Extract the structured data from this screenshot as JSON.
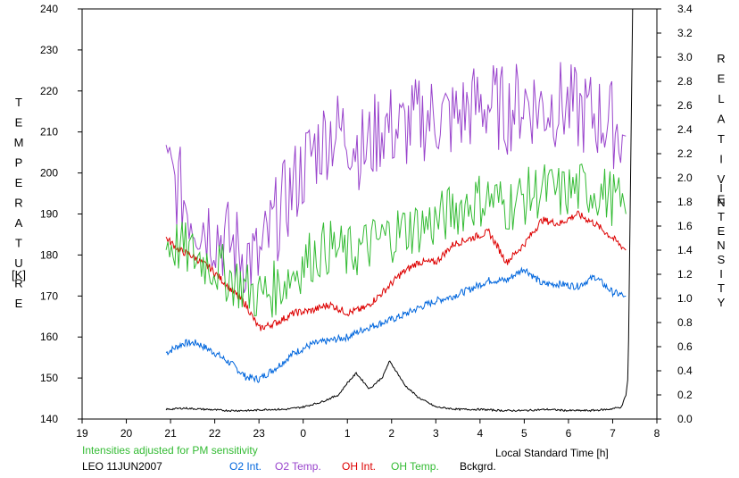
{
  "chart_data": {
    "type": "line",
    "xlabel": "Local Standard Time [h]",
    "ylabel_left": [
      "T",
      "E",
      "M",
      "P",
      "E",
      "R",
      "A",
      "T",
      "U",
      "R",
      "E"
    ],
    "ylabel_left_unit": "[K]",
    "ylabel_right_1": [
      "R",
      "E",
      "L",
      "A",
      "T",
      "I",
      "V",
      "E"
    ],
    "ylabel_right_2": [
      "I",
      "N",
      "T",
      "E",
      "N",
      "S",
      "I",
      "T",
      "Y"
    ],
    "x_ticks": [
      19,
      20,
      21,
      22,
      23,
      0,
      1,
      2,
      3,
      4,
      5,
      6,
      7,
      8
    ],
    "xlim": [
      19,
      32
    ],
    "y_left_ticks": [
      140,
      150,
      160,
      170,
      180,
      190,
      200,
      210,
      220,
      230,
      240
    ],
    "ylim_left": [
      140,
      240
    ],
    "y_right_ticks": [
      "0.0",
      "0.2",
      "0.4",
      "0.6",
      "0.8",
      "1.0",
      "1.2",
      "1.4",
      "1.6",
      "1.8",
      "2.0",
      "2.2",
      "2.4",
      "2.6",
      "2.8",
      "3.0",
      "3.2",
      "3.4"
    ],
    "ylim_right": [
      0,
      3.4
    ],
    "note": "Intensities adjusted for PM sensitivity",
    "station": "LEO 11JUN2007",
    "grid": false,
    "series": [
      {
        "name": "O2 Int.",
        "axis": "right",
        "color": "#0066dd",
        "x": [
          20.9,
          21.3,
          21.6,
          22.0,
          22.4,
          22.7,
          23.0,
          23.4,
          23.8,
          24.2,
          24.6,
          25.0,
          25.4,
          25.8,
          26.2,
          26.6,
          27.0,
          27.4,
          27.8,
          28.2,
          28.6,
          29.0,
          29.4,
          29.8,
          30.2,
          30.6,
          31.0,
          31.3
        ],
        "y": [
          0.55,
          0.63,
          0.63,
          0.55,
          0.45,
          0.35,
          0.33,
          0.43,
          0.55,
          0.62,
          0.65,
          0.68,
          0.75,
          0.8,
          0.85,
          0.92,
          0.98,
          1.02,
          1.08,
          1.15,
          1.15,
          1.25,
          1.12,
          1.12,
          1.1,
          1.18,
          1.05,
          1.02
        ]
      },
      {
        "name": "O2 Temp.",
        "axis": "left",
        "color": "#9944cc",
        "x": [
          20.9,
          21.2,
          21.5,
          21.9,
          22.3,
          22.7,
          23.0,
          23.4,
          23.8,
          24.2,
          24.6,
          25.0,
          25.4,
          25.8,
          26.2,
          26.6,
          27.0,
          27.4,
          27.8,
          28.2,
          28.6,
          29.0,
          29.4,
          29.8,
          30.2,
          30.6,
          31.0,
          31.3
        ],
        "y": [
          200,
          196,
          190,
          187,
          183,
          180,
          178,
          189,
          197,
          205,
          210,
          210,
          205,
          212,
          210,
          213,
          214,
          213,
          216,
          217,
          215,
          218,
          216,
          217,
          215,
          214,
          212,
          209
        ]
      },
      {
        "name": "OH Int.",
        "axis": "right",
        "color": "#dd0000",
        "x": [
          20.9,
          21.2,
          21.5,
          21.9,
          22.3,
          22.7,
          23.0,
          23.4,
          23.8,
          24.2,
          24.6,
          25.0,
          25.4,
          25.8,
          26.2,
          26.6,
          27.0,
          27.4,
          27.8,
          28.2,
          28.6,
          29.0,
          29.4,
          29.8,
          30.2,
          30.6,
          31.0,
          31.3
        ],
        "y": [
          1.5,
          1.4,
          1.35,
          1.25,
          1.1,
          0.95,
          0.75,
          0.8,
          0.88,
          0.9,
          0.95,
          0.88,
          0.92,
          1.05,
          1.2,
          1.3,
          1.3,
          1.45,
          1.5,
          1.55,
          1.3,
          1.45,
          1.65,
          1.62,
          1.7,
          1.62,
          1.5,
          1.4
        ]
      },
      {
        "name": "OH Temp.",
        "axis": "left",
        "color": "#33bb33",
        "x": [
          20.9,
          21.2,
          21.5,
          21.9,
          22.3,
          22.7,
          23.0,
          23.4,
          23.8,
          24.2,
          24.6,
          25.0,
          25.4,
          25.8,
          26.2,
          26.6,
          27.0,
          27.4,
          27.8,
          28.2,
          28.6,
          29.0,
          29.4,
          29.8,
          30.2,
          30.6,
          31.0,
          31.3
        ],
        "y": [
          183,
          182,
          180,
          178,
          175,
          172,
          170,
          172,
          176,
          180,
          182,
          180,
          182,
          184,
          186,
          187,
          188,
          191,
          193,
          194,
          192,
          194,
          196,
          195,
          196,
          196,
          194,
          190
        ]
      },
      {
        "name": "Bckgrd.",
        "axis": "right",
        "color": "#000000",
        "x": [
          20.9,
          21.3,
          21.8,
          22.3,
          22.8,
          23.2,
          23.6,
          24.0,
          24.4,
          24.8,
          25.0,
          25.2,
          25.5,
          25.8,
          25.95,
          26.1,
          26.3,
          26.6,
          27.0,
          27.5,
          28.0,
          28.5,
          29.0,
          29.5,
          30.0,
          30.5,
          30.9,
          31.2,
          31.3,
          31.35,
          31.45
        ],
        "y": [
          0.08,
          0.09,
          0.08,
          0.07,
          0.07,
          0.08,
          0.08,
          0.1,
          0.14,
          0.2,
          0.3,
          0.38,
          0.25,
          0.35,
          0.48,
          0.4,
          0.28,
          0.18,
          0.1,
          0.08,
          0.08,
          0.07,
          0.07,
          0.08,
          0.07,
          0.07,
          0.08,
          0.1,
          0.2,
          0.35,
          3.4
        ]
      }
    ]
  }
}
